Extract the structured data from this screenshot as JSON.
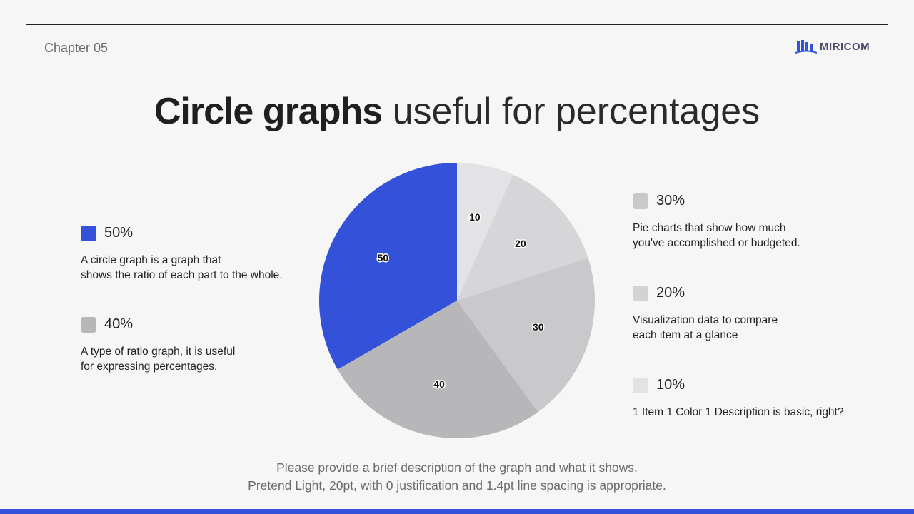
{
  "header": {
    "chapter": "Chapter 05",
    "logo_text": "MIRICOM"
  },
  "title": {
    "bold": "Circle graphs",
    "light": "useful for percentages"
  },
  "legend": [
    {
      "pct": "50%",
      "color": "#3451d9",
      "lines": [
        "A circle graph is a graph that",
        "shows the ratio of each part to the whole."
      ]
    },
    {
      "pct": "40%",
      "color": "#b7b7b9",
      "lines": [
        "A type of ratio graph, it is useful",
        "for expressing percentages."
      ]
    },
    {
      "pct": "30%",
      "color": "#c9c9cb",
      "lines": [
        "Pie charts that show how much",
        "you've accomplished or budgeted."
      ]
    },
    {
      "pct": "20%",
      "color": "#d3d3d5",
      "lines": [
        "Visualization data to compare",
        "each item at a glance"
      ]
    },
    {
      "pct": "10%",
      "color": "#e3e3e5",
      "lines": [
        "1 Item 1 Color 1 Description is basic, right?"
      ]
    }
  ],
  "chart_data": {
    "type": "pie",
    "start": "12 o'clock",
    "direction": "clockwise",
    "slices": [
      {
        "label": "10",
        "value": 10,
        "color": "#e3e3e5"
      },
      {
        "label": "20",
        "value": 20,
        "color": "#d6d6d8"
      },
      {
        "label": "30",
        "value": 30,
        "color": "#c9c9cb"
      },
      {
        "label": "40",
        "value": 40,
        "color": "#b7b7b9"
      },
      {
        "label": "50",
        "value": 50,
        "color": "#3451d9"
      }
    ]
  },
  "footnote": {
    "line1": "Please provide a brief description of the graph and what it shows.",
    "line2": "Pretend Light, 20pt, with 0 justification and 1.4pt line spacing is appropriate."
  },
  "colors": {
    "accent": "#3451d9",
    "background": "#f6f6f7"
  }
}
